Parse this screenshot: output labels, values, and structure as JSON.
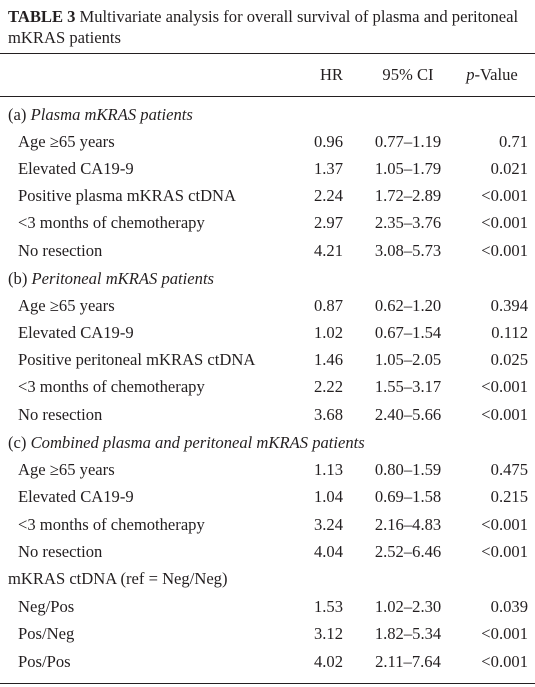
{
  "caption": {
    "label": "TABLE 3",
    "text": "Multivariate analysis for overall survival of plasma and peritoneal mKRAS patients"
  },
  "header": {
    "hr": "HR",
    "ci": "95% CI",
    "p_italic": "p",
    "p_rest": "-Value"
  },
  "sections": [
    {
      "prefix": "(a) ",
      "title": "Plasma mKRAS patients",
      "rows": [
        {
          "label": "Age ≥65 years",
          "hr": "0.96",
          "ci": "0.77–1.19",
          "p": "0.71"
        },
        {
          "label": "Elevated CA19-9",
          "hr": "1.37",
          "ci": "1.05–1.79",
          "p": "0.021"
        },
        {
          "label": "Positive plasma mKRAS ctDNA",
          "hr": "2.24",
          "ci": "1.72–2.89",
          "p": "<0.001"
        },
        {
          "label": "<3 months of chemotherapy",
          "hr": "2.97",
          "ci": "2.35–3.76",
          "p": "<0.001"
        },
        {
          "label": "No resection",
          "hr": "4.21",
          "ci": "3.08–5.73",
          "p": "<0.001"
        }
      ]
    },
    {
      "prefix": "(b) ",
      "title": "Peritoneal mKRAS patients",
      "rows": [
        {
          "label": "Age ≥65 years",
          "hr": "0.87",
          "ci": "0.62–1.20",
          "p": "0.394"
        },
        {
          "label": "Elevated CA19-9",
          "hr": "1.02",
          "ci": "0.67–1.54",
          "p": "0.112"
        },
        {
          "label": "Positive peritoneal mKRAS ctDNA",
          "hr": "1.46",
          "ci": "1.05–2.05",
          "p": "0.025"
        },
        {
          "label": "<3 months of chemotherapy",
          "hr": "2.22",
          "ci": "1.55–3.17",
          "p": "<0.001"
        },
        {
          "label": "No resection",
          "hr": "3.68",
          "ci": "2.40–5.66",
          "p": "<0.001"
        }
      ]
    },
    {
      "prefix": "(c) ",
      "title": "Combined plasma and peritoneal mKRAS patients",
      "rows": [
        {
          "label": "Age ≥65 years",
          "hr": "1.13",
          "ci": "0.80–1.59",
          "p": "0.475"
        },
        {
          "label": "Elevated CA19-9",
          "hr": "1.04",
          "ci": "0.69–1.58",
          "p": "0.215"
        },
        {
          "label": "<3 months of chemotherapy",
          "hr": "3.24",
          "ci": "2.16–4.83",
          "p": "<0.001"
        },
        {
          "label": "No resection",
          "hr": "4.04",
          "ci": "2.52–6.46",
          "p": "<0.001"
        }
      ]
    }
  ],
  "subgroup": {
    "title": "mKRAS ctDNA (ref = Neg/Neg)",
    "rows": [
      {
        "label": "Neg/Pos",
        "hr": "1.53",
        "ci": "1.02–2.30",
        "p": "0.039"
      },
      {
        "label": "Pos/Neg",
        "hr": "3.12",
        "ci": "1.82–5.34",
        "p": "<0.001"
      },
      {
        "label": "Pos/Pos",
        "hr": "4.02",
        "ci": "2.11–7.64",
        "p": "<0.001"
      }
    ]
  }
}
